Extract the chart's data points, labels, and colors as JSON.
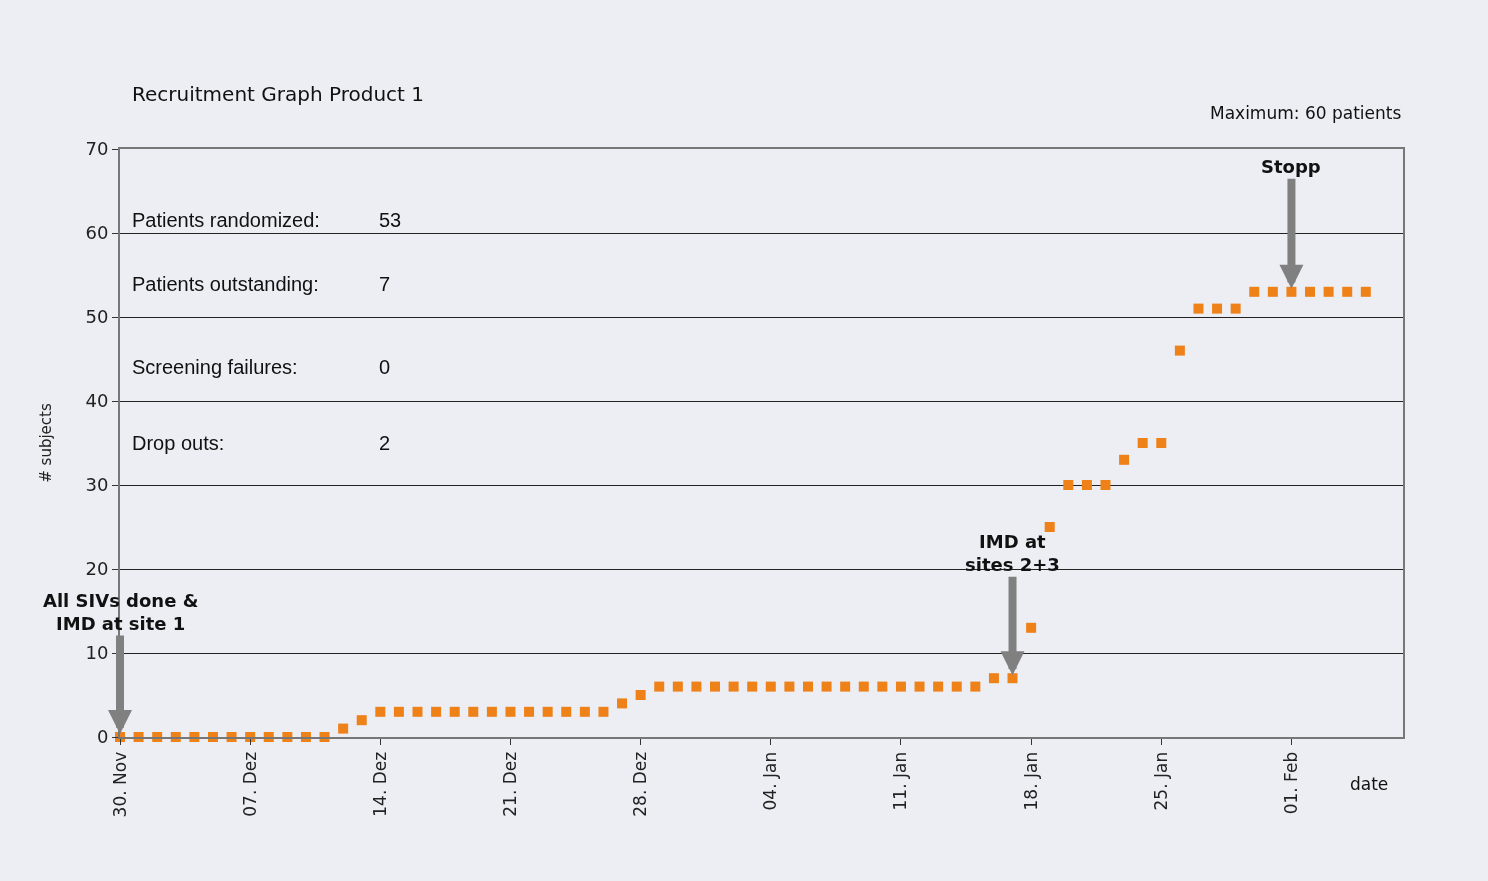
{
  "chart_data": {
    "type": "scatter",
    "title": "Recruitment Graph Product 1",
    "subtitle": "Maximum: 60 patients",
    "xlabel": "date",
    "ylabel": "# subjects",
    "x": [
      0,
      1,
      2,
      3,
      4,
      5,
      6,
      7,
      8,
      9,
      10,
      11,
      12,
      13,
      14,
      15,
      16,
      17,
      18,
      19,
      20,
      21,
      22,
      23,
      24,
      25,
      26,
      27,
      28,
      29,
      30,
      31,
      32,
      33,
      34,
      35,
      36,
      37,
      38,
      39,
      40,
      41,
      42,
      43,
      44,
      45,
      46,
      47,
      48,
      49,
      50,
      51,
      52,
      53,
      54,
      55,
      56,
      57,
      58,
      59,
      60,
      61,
      62,
      63,
      64,
      65,
      66,
      67
    ],
    "series": [
      {
        "color": "#ee8118",
        "values": [
          0,
          0,
          0,
          0,
          0,
          0,
          0,
          0,
          0,
          0,
          0,
          0,
          1,
          2,
          3,
          3,
          3,
          3,
          3,
          3,
          3,
          3,
          3,
          3,
          3,
          3,
          3,
          4,
          5,
          6,
          6,
          6,
          6,
          6,
          6,
          6,
          6,
          6,
          6,
          6,
          6,
          6,
          6,
          6,
          6,
          6,
          6,
          7,
          7,
          13,
          25,
          30,
          30,
          30,
          33,
          35,
          35,
          46,
          51,
          51,
          51,
          53,
          53,
          53,
          53,
          53,
          53,
          53
        ]
      }
    ],
    "marker": "square",
    "xlim": [
      0,
      69
    ],
    "xticks": [
      {
        "value": 0,
        "label": "30. Nov"
      },
      {
        "value": 7,
        "label": "07. Dez"
      },
      {
        "value": 14,
        "label": "14. Dez"
      },
      {
        "value": 21,
        "label": "21. Dez"
      },
      {
        "value": 28,
        "label": "28. Dez"
      },
      {
        "value": 35,
        "label": "04. Jan"
      },
      {
        "value": 42,
        "label": "11. Jan"
      },
      {
        "value": 49,
        "label": "18. Jan"
      },
      {
        "value": 56,
        "label": "25. Jan"
      },
      {
        "value": 63,
        "label": "01. Feb"
      }
    ],
    "ylim": [
      0,
      70
    ],
    "yticks": [
      0,
      10,
      20,
      30,
      40,
      50,
      60,
      70
    ],
    "grid": "y",
    "annotations": [
      "Patients randomized:",
      "53",
      "Patients outstanding:",
      "7",
      "Screening failures:",
      "0",
      "Drop outs:",
      "2",
      {
        "text": "All SIVs done &\nIMD at site 1",
        "x": 0,
        "y": 0
      },
      {
        "text": "IMD at\nsites 2+3",
        "x": 48,
        "y": 7
      },
      {
        "text": "Stopp",
        "x": 63,
        "y": 53
      }
    ]
  }
}
